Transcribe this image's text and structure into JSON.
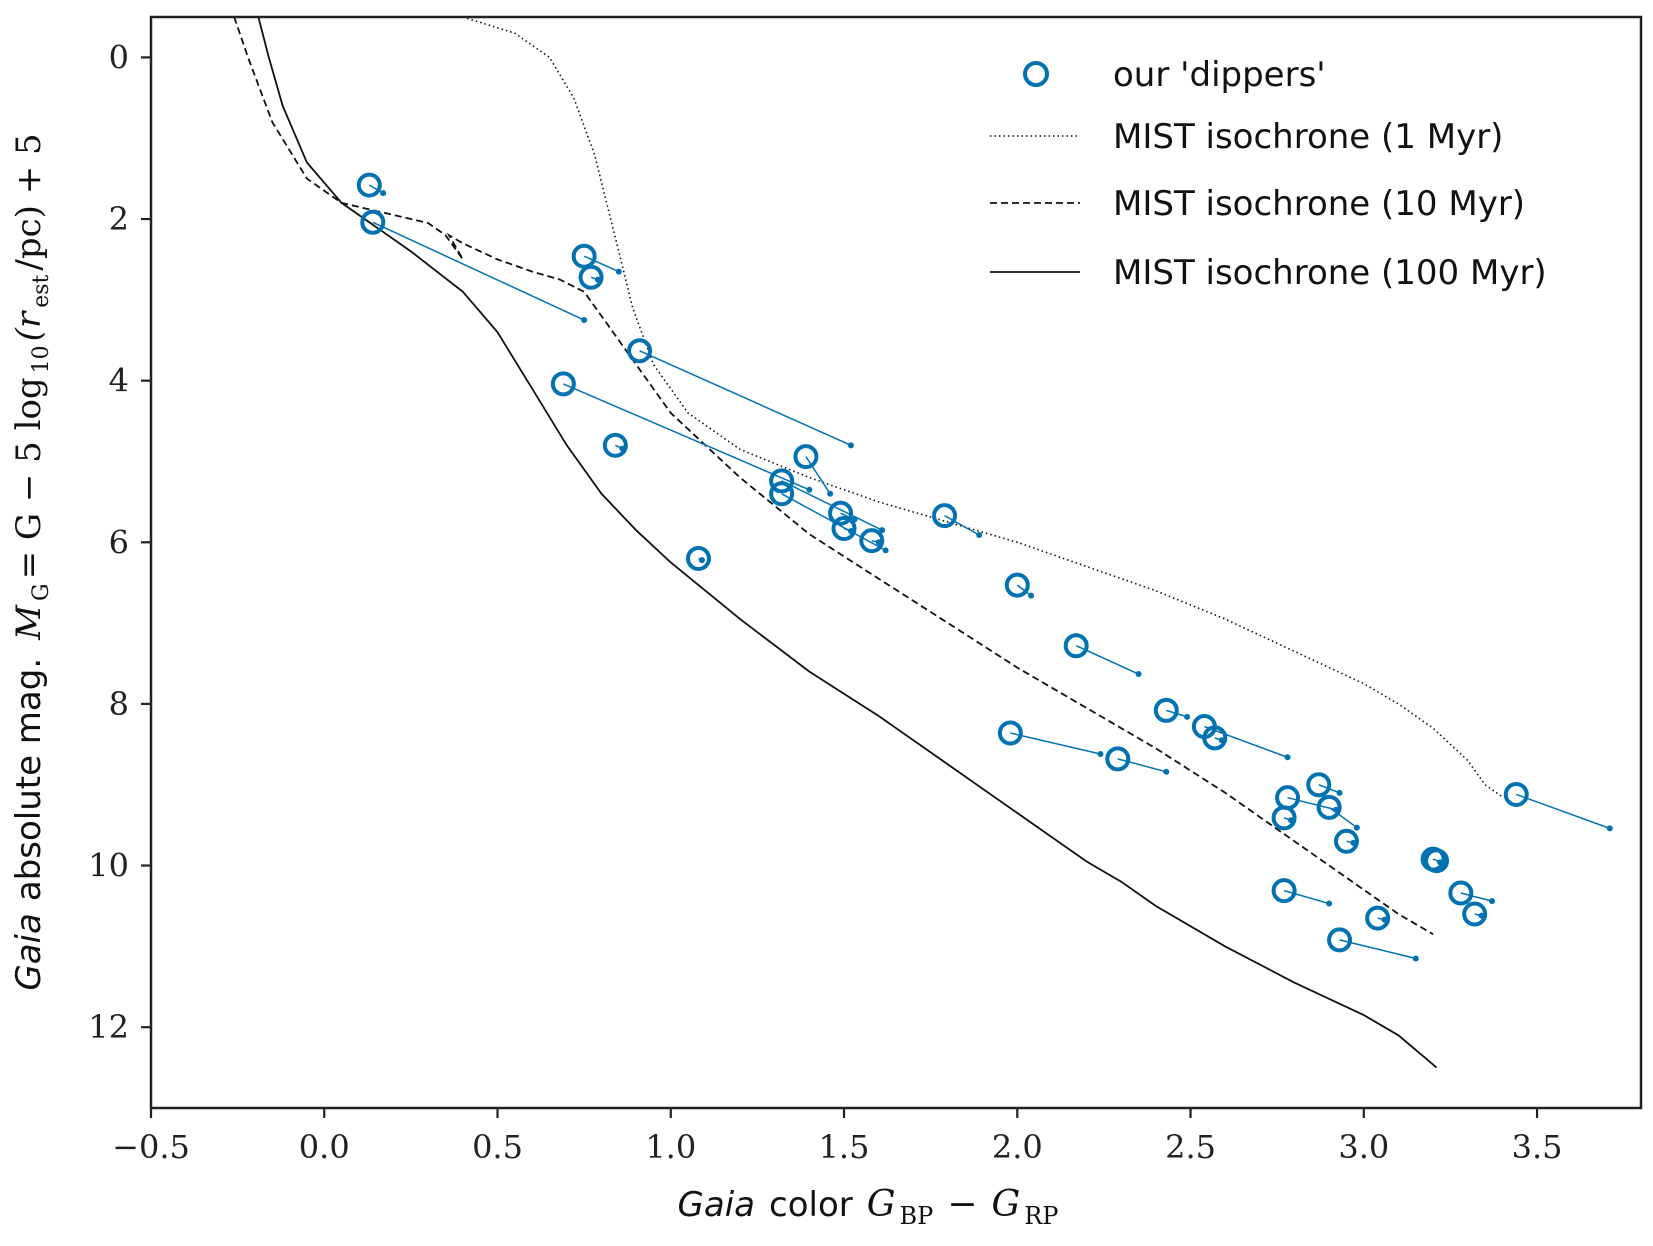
{
  "chart_data": {
    "type": "scatter",
    "xlabel": {
      "italic": "Gaia",
      "plain": "color",
      "math": "G",
      "sub1": "BP",
      "minus": "−",
      "math2": "G",
      "sub2": "RP"
    },
    "ylabel": {
      "italic": "Gaia",
      "plain": "absolute mag.",
      "math": "M",
      "sub": "G",
      "eq": " = G − 5 log",
      "sub10": "10",
      "rest": "(r",
      "subest": "est",
      "tail": "/pc) + 5"
    },
    "xlim": [
      -0.5,
      3.8
    ],
    "ylim": [
      13.0,
      -0.5
    ],
    "y_inverted": true,
    "xticks": [
      -0.5,
      0.0,
      0.5,
      1.0,
      1.5,
      2.0,
      2.5,
      3.0,
      3.5
    ],
    "xtick_labels": [
      "−0.5",
      "0.0",
      "0.5",
      "1.0",
      "1.5",
      "2.0",
      "2.5",
      "3.0",
      "3.5"
    ],
    "yticks": [
      0,
      2,
      4,
      6,
      8,
      10,
      12
    ],
    "ytick_labels": [
      "0",
      "2",
      "4",
      "6",
      "8",
      "10",
      "12"
    ],
    "legend": {
      "position": "top-right",
      "entries": [
        {
          "label": "our 'dippers'",
          "style": "circle"
        },
        {
          "label": "MIST isochrone (1 Myr)",
          "style": "dotted"
        },
        {
          "label": "MIST isochrone (10 Myr)",
          "style": "dashed"
        },
        {
          "label": "MIST isochrone (100 Myr)",
          "style": "solid"
        }
      ]
    },
    "colors": {
      "dippers": "#0072b2",
      "isochrone": "#111111",
      "axes": "#222222"
    },
    "dippers": [
      {
        "x": 0.13,
        "y": 1.58,
        "x2": 0.17,
        "y2": 1.68
      },
      {
        "x": 0.14,
        "y": 2.04,
        "x2": 0.75,
        "y2": 3.25
      },
      {
        "x": 0.75,
        "y": 2.46,
        "x2": 0.85,
        "y2": 2.65
      },
      {
        "x": 0.77,
        "y": 2.72,
        "x2": 0.79,
        "y2": 2.75
      },
      {
        "x": 0.91,
        "y": 3.63,
        "x2": 1.52,
        "y2": 4.8
      },
      {
        "x": 0.69,
        "y": 4.04,
        "x2": 1.4,
        "y2": 5.35
      },
      {
        "x": 0.84,
        "y": 4.8,
        "x2": 0.86,
        "y2": 4.84
      },
      {
        "x": 1.08,
        "y": 6.2,
        "x2": 1.09,
        "y2": 6.22
      },
      {
        "x": 1.39,
        "y": 4.94,
        "x2": 1.46,
        "y2": 5.4
      },
      {
        "x": 1.32,
        "y": 5.24,
        "x2": 1.61,
        "y2": 5.85
      },
      {
        "x": 1.32,
        "y": 5.4,
        "x2": 1.62,
        "y2": 6.1
      },
      {
        "x": 1.49,
        "y": 5.64,
        "x2": 1.53,
        "y2": 5.72
      },
      {
        "x": 1.5,
        "y": 5.83,
        "x2": 1.52,
        "y2": 5.86
      },
      {
        "x": 1.58,
        "y": 5.98,
        "x2": 1.6,
        "y2": 6.0
      },
      {
        "x": 1.79,
        "y": 5.67,
        "x2": 1.89,
        "y2": 5.91
      },
      {
        "x": 2.0,
        "y": 6.53,
        "x2": 2.04,
        "y2": 6.66
      },
      {
        "x": 2.17,
        "y": 7.28,
        "x2": 2.35,
        "y2": 7.63
      },
      {
        "x": 2.43,
        "y": 8.08,
        "x2": 2.49,
        "y2": 8.16
      },
      {
        "x": 2.54,
        "y": 8.28,
        "x2": 2.78,
        "y2": 8.66
      },
      {
        "x": 2.57,
        "y": 8.42,
        "x2": 2.59,
        "y2": 8.45
      },
      {
        "x": 1.98,
        "y": 8.36,
        "x2": 2.24,
        "y2": 8.62
      },
      {
        "x": 2.29,
        "y": 8.68,
        "x2": 2.43,
        "y2": 8.84
      },
      {
        "x": 2.78,
        "y": 9.16,
        "x2": 2.92,
        "y2": 9.31
      },
      {
        "x": 2.77,
        "y": 9.41,
        "x2": 2.79,
        "y2": 9.44
      },
      {
        "x": 2.87,
        "y": 9.0,
        "x2": 2.93,
        "y2": 9.1
      },
      {
        "x": 2.9,
        "y": 9.28,
        "x2": 2.98,
        "y2": 9.53
      },
      {
        "x": 2.95,
        "y": 9.7,
        "x2": 2.97,
        "y2": 9.72
      },
      {
        "x": 3.2,
        "y": 9.92,
        "x2": 3.23,
        "y2": 9.97
      },
      {
        "x": 3.21,
        "y": 9.94,
        "x2": 3.22,
        "y2": 9.96
      },
      {
        "x": 2.77,
        "y": 10.31,
        "x2": 2.9,
        "y2": 10.47
      },
      {
        "x": 3.04,
        "y": 10.65,
        "x2": 3.06,
        "y2": 10.67
      },
      {
        "x": 3.28,
        "y": 10.34,
        "x2": 3.37,
        "y2": 10.44
      },
      {
        "x": 3.32,
        "y": 10.6,
        "x2": 3.34,
        "y2": 10.62
      },
      {
        "x": 2.93,
        "y": 10.92,
        "x2": 3.15,
        "y2": 11.15
      },
      {
        "x": 3.44,
        "y": 9.12,
        "x2": 3.71,
        "y2": 9.54
      }
    ],
    "isochrones": [
      {
        "name": "1 Myr",
        "style": "dotted",
        "points": [
          [
            0.4,
            -0.5
          ],
          [
            0.55,
            -0.3
          ],
          [
            0.65,
            0.0
          ],
          [
            0.72,
            0.5
          ],
          [
            0.78,
            1.2
          ],
          [
            0.85,
            2.4
          ],
          [
            0.89,
            3.1
          ],
          [
            0.95,
            3.8
          ],
          [
            1.05,
            4.4
          ],
          [
            1.2,
            4.85
          ],
          [
            1.4,
            5.2
          ],
          [
            1.6,
            5.5
          ],
          [
            1.8,
            5.75
          ],
          [
            2.0,
            6.0
          ],
          [
            2.2,
            6.3
          ],
          [
            2.4,
            6.6
          ],
          [
            2.6,
            6.95
          ],
          [
            2.8,
            7.35
          ],
          [
            3.0,
            7.75
          ],
          [
            3.1,
            8.0
          ],
          [
            3.2,
            8.3
          ],
          [
            3.3,
            8.7
          ],
          [
            3.35,
            9.0
          ],
          [
            3.4,
            9.15
          ]
        ]
      },
      {
        "name": "10 Myr",
        "style": "dashed",
        "points": [
          [
            -0.26,
            -0.5
          ],
          [
            -0.22,
            0.0
          ],
          [
            -0.15,
            0.8
          ],
          [
            -0.05,
            1.5
          ],
          [
            0.05,
            1.8
          ],
          [
            0.15,
            1.9
          ],
          [
            0.25,
            2.0
          ],
          [
            0.3,
            2.05
          ],
          [
            0.35,
            2.2
          ],
          [
            0.4,
            2.5
          ],
          [
            0.36,
            2.2
          ],
          [
            0.4,
            2.3
          ],
          [
            0.5,
            2.5
          ],
          [
            0.6,
            2.65
          ],
          [
            0.68,
            2.75
          ],
          [
            0.75,
            2.9
          ],
          [
            0.8,
            3.2
          ],
          [
            0.9,
            3.8
          ],
          [
            1.0,
            4.4
          ],
          [
            1.2,
            5.2
          ],
          [
            1.4,
            5.9
          ],
          [
            1.6,
            6.45
          ],
          [
            1.8,
            7.0
          ],
          [
            2.0,
            7.55
          ],
          [
            2.2,
            8.05
          ],
          [
            2.4,
            8.55
          ],
          [
            2.6,
            9.1
          ],
          [
            2.8,
            9.7
          ],
          [
            3.0,
            10.3
          ],
          [
            3.1,
            10.6
          ],
          [
            3.2,
            10.85
          ]
        ]
      },
      {
        "name": "100 Myr",
        "style": "solid",
        "points": [
          [
            -0.19,
            -0.5
          ],
          [
            -0.16,
            0.0
          ],
          [
            -0.12,
            0.6
          ],
          [
            -0.05,
            1.3
          ],
          [
            0.05,
            1.8
          ],
          [
            0.15,
            2.1
          ],
          [
            0.25,
            2.4
          ],
          [
            0.4,
            2.9
          ],
          [
            0.5,
            3.4
          ],
          [
            0.6,
            4.1
          ],
          [
            0.7,
            4.8
          ],
          [
            0.8,
            5.4
          ],
          [
            0.9,
            5.85
          ],
          [
            1.0,
            6.25
          ],
          [
            1.2,
            6.95
          ],
          [
            1.4,
            7.6
          ],
          [
            1.6,
            8.15
          ],
          [
            1.8,
            8.75
          ],
          [
            2.0,
            9.35
          ],
          [
            2.2,
            9.95
          ],
          [
            2.3,
            10.2
          ],
          [
            2.4,
            10.5
          ],
          [
            2.6,
            11.0
          ],
          [
            2.8,
            11.45
          ],
          [
            3.0,
            11.85
          ],
          [
            3.1,
            12.1
          ],
          [
            3.21,
            12.5
          ]
        ]
      }
    ]
  }
}
